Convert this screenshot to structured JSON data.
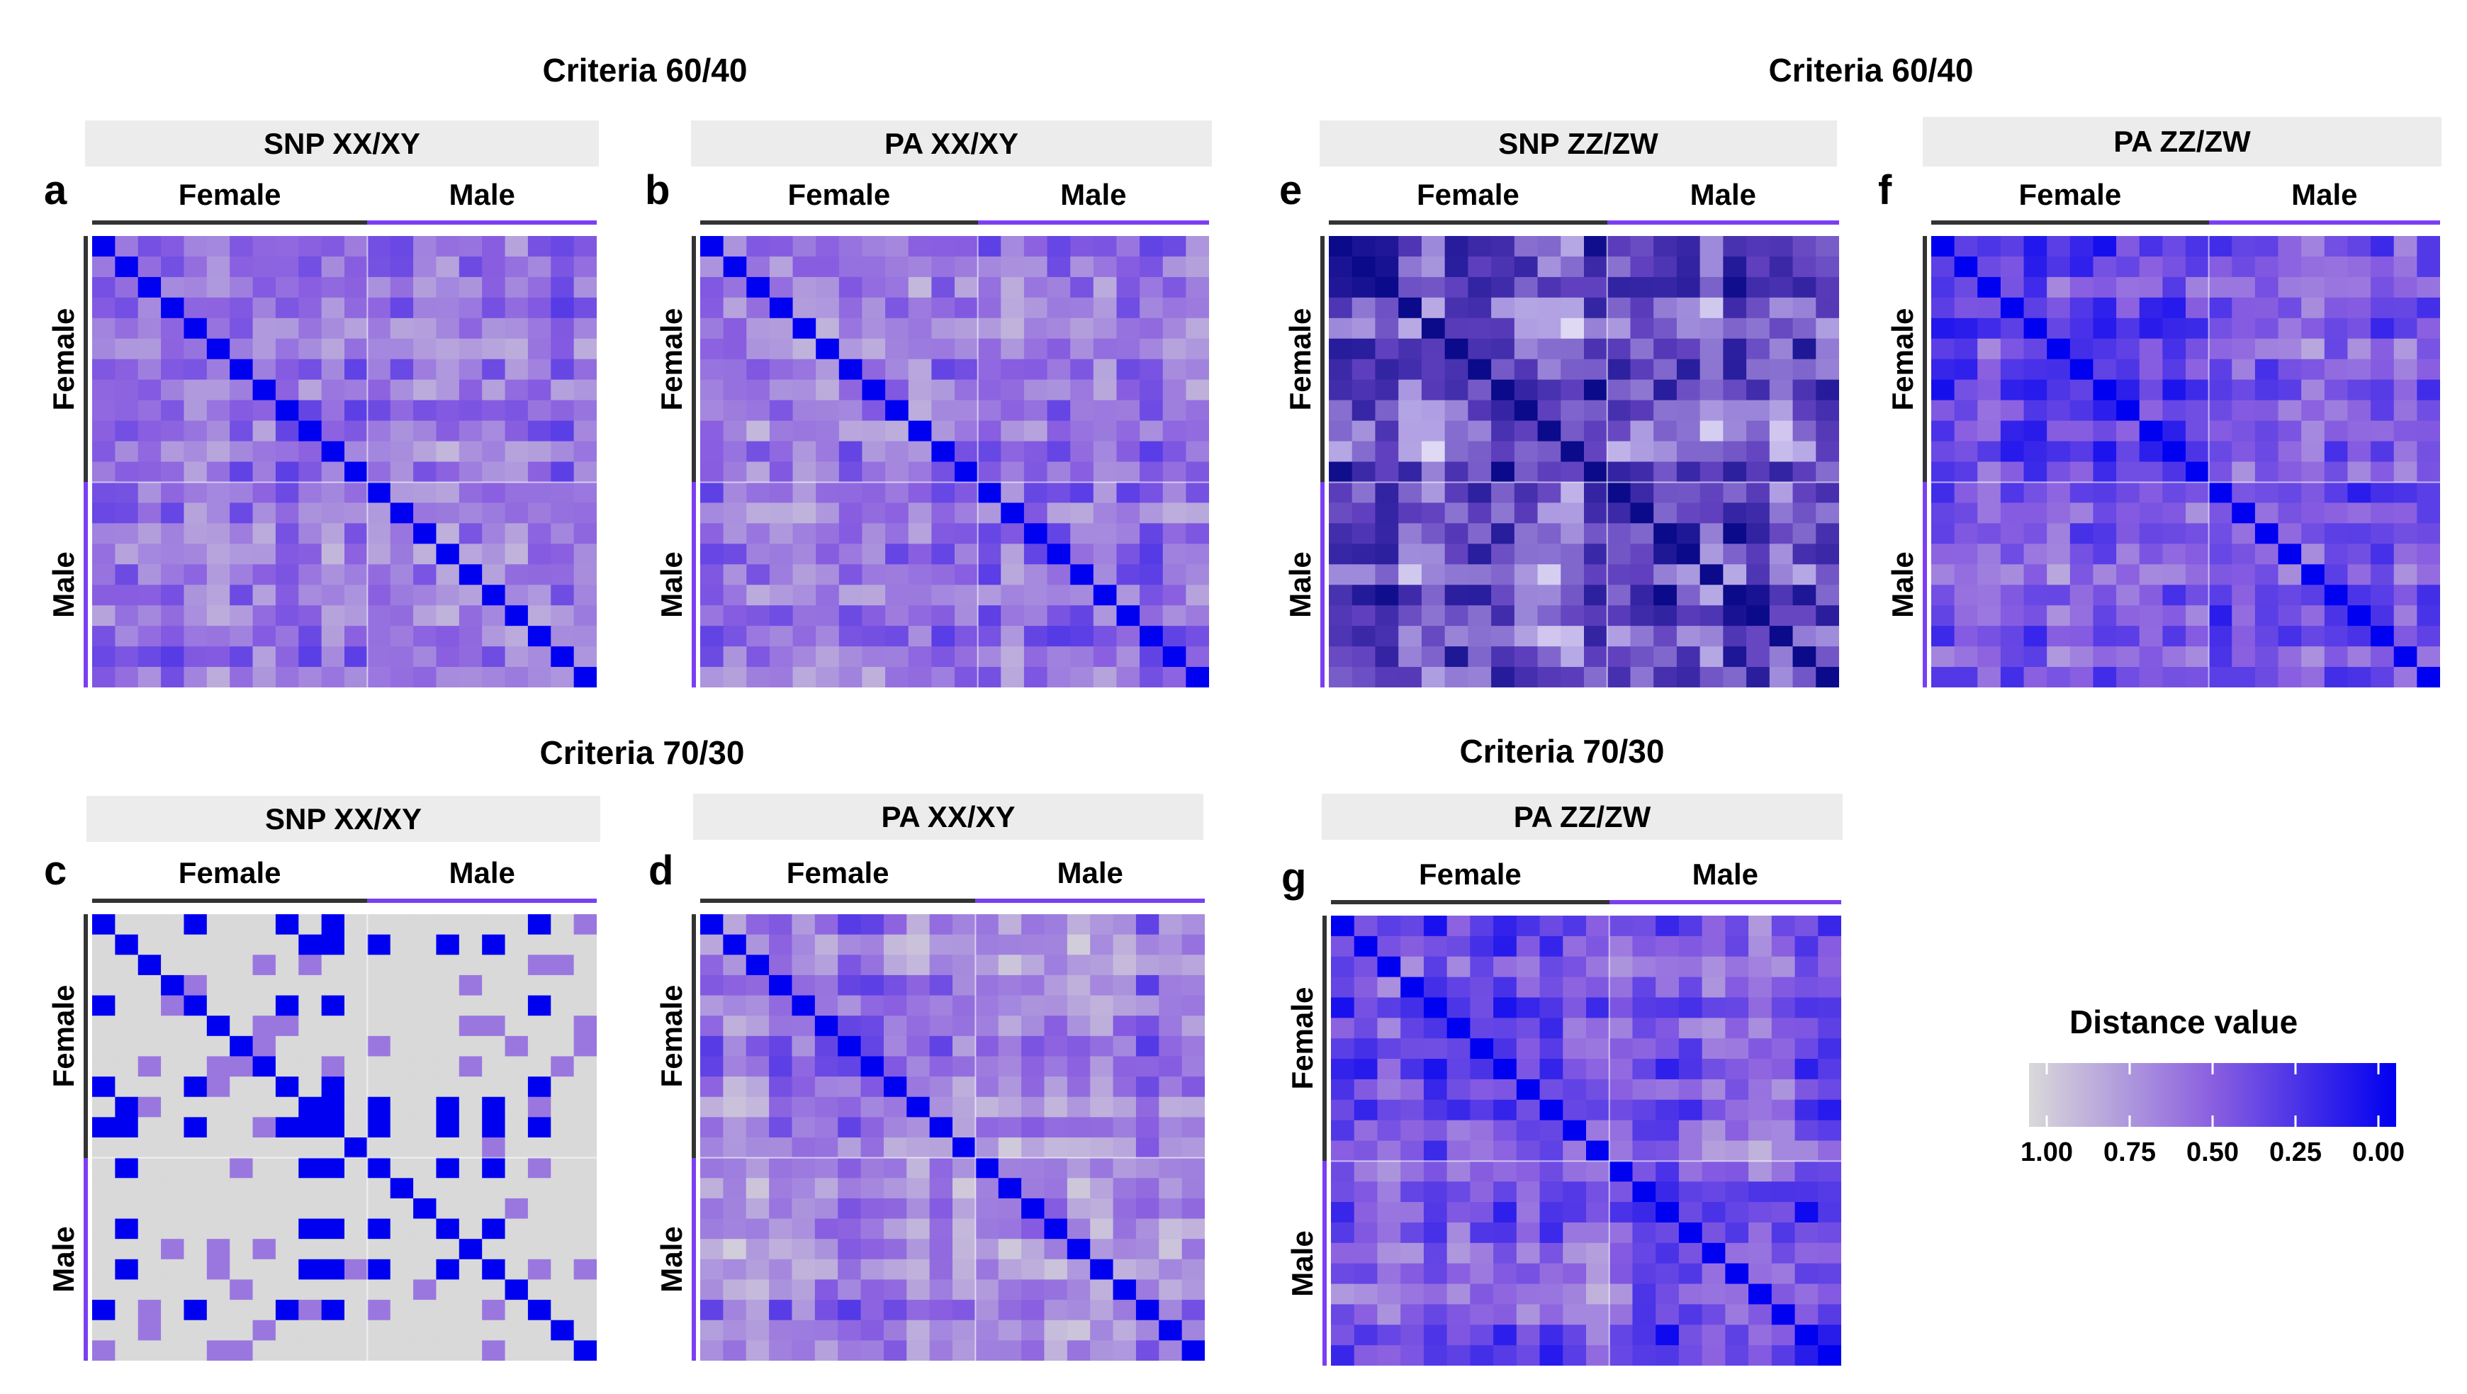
{
  "colors": {
    "female_bar": "#333333",
    "male_bar": "#7b3ff2",
    "strip_bg": "#ececec",
    "scale_low": "#0000f0",
    "scale_mid": "#8a5fe0",
    "scale_high": "#d9d9d9",
    "scale_dark": "#0a0a8a",
    "scale_white": "#f4f2fb"
  },
  "group_titles": {
    "left_top": "Criteria 60/40",
    "right_top": "Criteria 60/40",
    "left_bottom": "Criteria 70/30",
    "right_bottom": "Criteria 70/30"
  },
  "categories": {
    "female": "Female",
    "male": "Male"
  },
  "legend": {
    "title": "Distance value",
    "ticks": [
      "1.00",
      "0.75",
      "0.50",
      "0.25",
      "0.00"
    ]
  },
  "chart_data": [
    {
      "type": "heatmap",
      "panel": "a",
      "title": "SNP XX/XY",
      "n": 22,
      "female_n": 12,
      "style": "purple",
      "seed": 11
    },
    {
      "type": "heatmap",
      "panel": "b",
      "title": "PA XX/XY",
      "n": 22,
      "female_n": 12,
      "style": "purple",
      "seed": 23
    },
    {
      "type": "heatmap",
      "panel": "c",
      "title": "SNP XX/XY",
      "n": 22,
      "female_n": 12,
      "style": "binary",
      "seed": 37
    },
    {
      "type": "heatmap",
      "panel": "d",
      "title": "PA XX/XY",
      "n": 22,
      "female_n": 12,
      "style": "purple",
      "seed": 41
    },
    {
      "type": "heatmap",
      "panel": "e",
      "title": "SNP ZZ/ZW",
      "n": 22,
      "female_n": 12,
      "style": "dark",
      "seed": 53
    },
    {
      "type": "heatmap",
      "panel": "f",
      "title": "PA ZZ/ZW",
      "n": 22,
      "female_n": 12,
      "style": "blue",
      "seed": 67
    },
    {
      "type": "heatmap",
      "panel": "g",
      "title": "PA ZZ/ZW",
      "n": 22,
      "female_n": 12,
      "style": "blue",
      "seed": 79
    }
  ]
}
